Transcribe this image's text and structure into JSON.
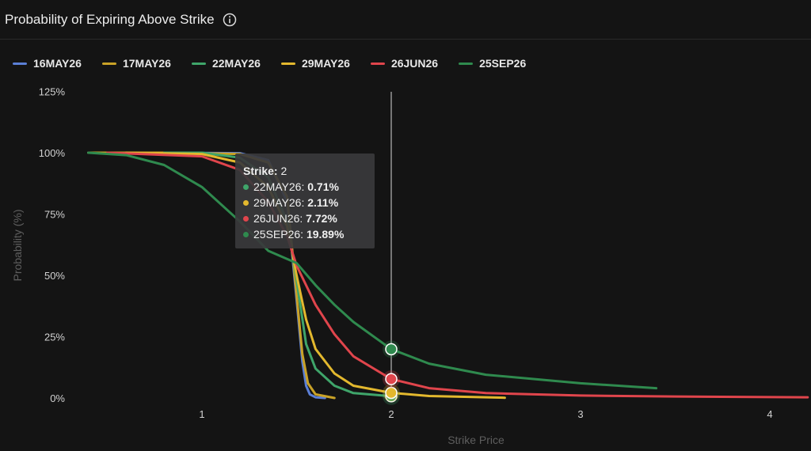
{
  "header": {
    "title": "Probability of Expiring Above Strike",
    "info_icon": "info-icon"
  },
  "tooltip": {
    "strike_label": "Strike:",
    "strike_value": "2",
    "rows": [
      {
        "name": "22MAY26:",
        "value": "0.71%",
        "color": "#3fa56a"
      },
      {
        "name": "29MAY26:",
        "value": "2.11%",
        "color": "#e3b82e"
      },
      {
        "name": "26JUN26:",
        "value": "7.72%",
        "color": "#e0454c"
      },
      {
        "name": "25SEP26:",
        "value": "19.89%",
        "color": "#2f8a4e"
      }
    ]
  },
  "chart_data": {
    "type": "line",
    "title": "Probability of Expiring Above Strike",
    "xlabel": "Strike Price",
    "ylabel": "Probability (%)",
    "xlim": [
      0.4,
      4.2
    ],
    "ylim": [
      0,
      125
    ],
    "x_ticks": [
      1,
      2,
      3,
      4
    ],
    "y_ticks": [
      0,
      25,
      50,
      75,
      100,
      125
    ],
    "y_tick_labels": [
      "0%",
      "25%",
      "50%",
      "75%",
      "100%",
      "125%"
    ],
    "grid": false,
    "legend": "top-left",
    "crosshair_x": 2,
    "series": [
      {
        "name": "16MAY26",
        "color": "#5b7fd6",
        "x": [
          0.4,
          0.8,
          1.2,
          1.35,
          1.45,
          1.5,
          1.53,
          1.55,
          1.57,
          1.6,
          1.65
        ],
        "y": [
          100,
          100,
          99.8,
          97,
          80,
          40,
          15,
          5,
          1.5,
          0.3,
          0
        ]
      },
      {
        "name": "17MAY26",
        "color": "#c9a227",
        "x": [
          0.4,
          0.8,
          1.2,
          1.35,
          1.45,
          1.5,
          1.53,
          1.56,
          1.6,
          1.7
        ],
        "y": [
          100,
          100,
          99.5,
          96,
          82,
          42,
          18,
          6,
          1.5,
          0
        ]
      },
      {
        "name": "22MAY26",
        "color": "#3fa56a",
        "x": [
          0.8,
          1.0,
          1.2,
          1.35,
          1.45,
          1.5,
          1.55,
          1.6,
          1.7,
          1.8,
          2.0
        ],
        "y": [
          100,
          100,
          98,
          90,
          72,
          48,
          22,
          12,
          5,
          2,
          0.71
        ]
      },
      {
        "name": "29MAY26",
        "color": "#e3b82e",
        "x": [
          0.6,
          1.0,
          1.2,
          1.35,
          1.45,
          1.5,
          1.55,
          1.6,
          1.7,
          1.8,
          2.0,
          2.2,
          2.6
        ],
        "y": [
          100,
          99.5,
          96,
          86,
          70,
          50,
          32,
          20,
          10,
          5,
          2.11,
          0.8,
          0.1
        ]
      },
      {
        "name": "26JUN26",
        "color": "#e0454c",
        "x": [
          0.5,
          1.0,
          1.2,
          1.35,
          1.45,
          1.5,
          1.6,
          1.7,
          1.8,
          2.0,
          2.2,
          2.5,
          3.0,
          3.5,
          4.2
        ],
        "y": [
          100,
          98.5,
          93,
          80,
          66,
          54,
          38,
          26,
          17,
          7.72,
          4,
          2,
          1,
          0.6,
          0.3
        ]
      },
      {
        "name": "25SEP26",
        "color": "#2f8a4e",
        "x": [
          0.4,
          0.6,
          0.8,
          1.0,
          1.2,
          1.35,
          1.5,
          1.6,
          1.7,
          1.8,
          2.0,
          2.2,
          2.5,
          3.0,
          3.4
        ],
        "y": [
          100,
          99,
          95,
          86,
          72,
          60,
          55,
          46,
          38,
          31,
          19.89,
          14,
          9.5,
          6,
          4
        ]
      }
    ],
    "hover_points": [
      {
        "series": "22MAY26",
        "x": 2,
        "y": 0.71
      },
      {
        "series": "29MAY26",
        "x": 2,
        "y": 2.11
      },
      {
        "series": "26JUN26",
        "x": 2,
        "y": 7.72
      },
      {
        "series": "25SEP26",
        "x": 2,
        "y": 19.89
      }
    ]
  }
}
